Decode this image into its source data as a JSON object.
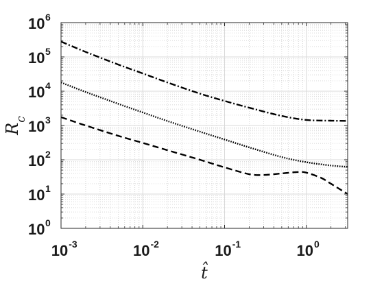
{
  "chart_data": {
    "type": "line",
    "x_scale": "log",
    "y_scale": "log",
    "xlim": [
      0.001,
      3.2
    ],
    "ylim": [
      1,
      1000000
    ],
    "grid": true,
    "minor_grid": true,
    "xlabel": "t̂",
    "ylabel": "R_c",
    "x_ticks": [
      {
        "base": "10",
        "exp": "-3",
        "value": 0.001
      },
      {
        "base": "10",
        "exp": "-2",
        "value": 0.01
      },
      {
        "base": "10",
        "exp": "-1",
        "value": 0.1
      },
      {
        "base": "10",
        "exp": "0",
        "value": 1
      }
    ],
    "y_ticks": [
      {
        "base": "10",
        "exp": "0",
        "value": 1
      },
      {
        "base": "10",
        "exp": "1",
        "value": 10
      },
      {
        "base": "10",
        "exp": "2",
        "value": 100
      },
      {
        "base": "10",
        "exp": "3",
        "value": 1000
      },
      {
        "base": "10",
        "exp": "4",
        "value": 10000
      },
      {
        "base": "10",
        "exp": "5",
        "value": 100000
      },
      {
        "base": "10",
        "exp": "6",
        "value": 1000000
      }
    ],
    "series": [
      {
        "style": "dashdot",
        "points": [
          [
            0.001,
            280000
          ],
          [
            0.002,
            140000
          ],
          [
            0.005,
            60000
          ],
          [
            0.01,
            33000
          ],
          [
            0.02,
            18000
          ],
          [
            0.05,
            8500
          ],
          [
            0.1,
            5200
          ],
          [
            0.2,
            3300
          ],
          [
            0.5,
            1900
          ],
          [
            1.0,
            1450
          ],
          [
            2.0,
            1380
          ],
          [
            3.2,
            1360
          ]
        ]
      },
      {
        "style": "dotted",
        "points": [
          [
            0.001,
            18000
          ],
          [
            0.002,
            9500
          ],
          [
            0.005,
            4300
          ],
          [
            0.01,
            2400
          ],
          [
            0.02,
            1350
          ],
          [
            0.05,
            660
          ],
          [
            0.1,
            390
          ],
          [
            0.2,
            230
          ],
          [
            0.5,
            120
          ],
          [
            1.0,
            85
          ],
          [
            2.0,
            68
          ],
          [
            3.2,
            62
          ]
        ]
      },
      {
        "style": "dashed",
        "points": [
          [
            0.001,
            1750
          ],
          [
            0.002,
            1000
          ],
          [
            0.005,
            500
          ],
          [
            0.01,
            310
          ],
          [
            0.02,
            190
          ],
          [
            0.05,
            100
          ],
          [
            0.1,
            60
          ],
          [
            0.2,
            38
          ],
          [
            0.3,
            36
          ],
          [
            0.5,
            40
          ],
          [
            0.8,
            44
          ],
          [
            1.0,
            42
          ],
          [
            1.5,
            30
          ],
          [
            2.0,
            20
          ],
          [
            3.2,
            10
          ]
        ]
      }
    ]
  }
}
